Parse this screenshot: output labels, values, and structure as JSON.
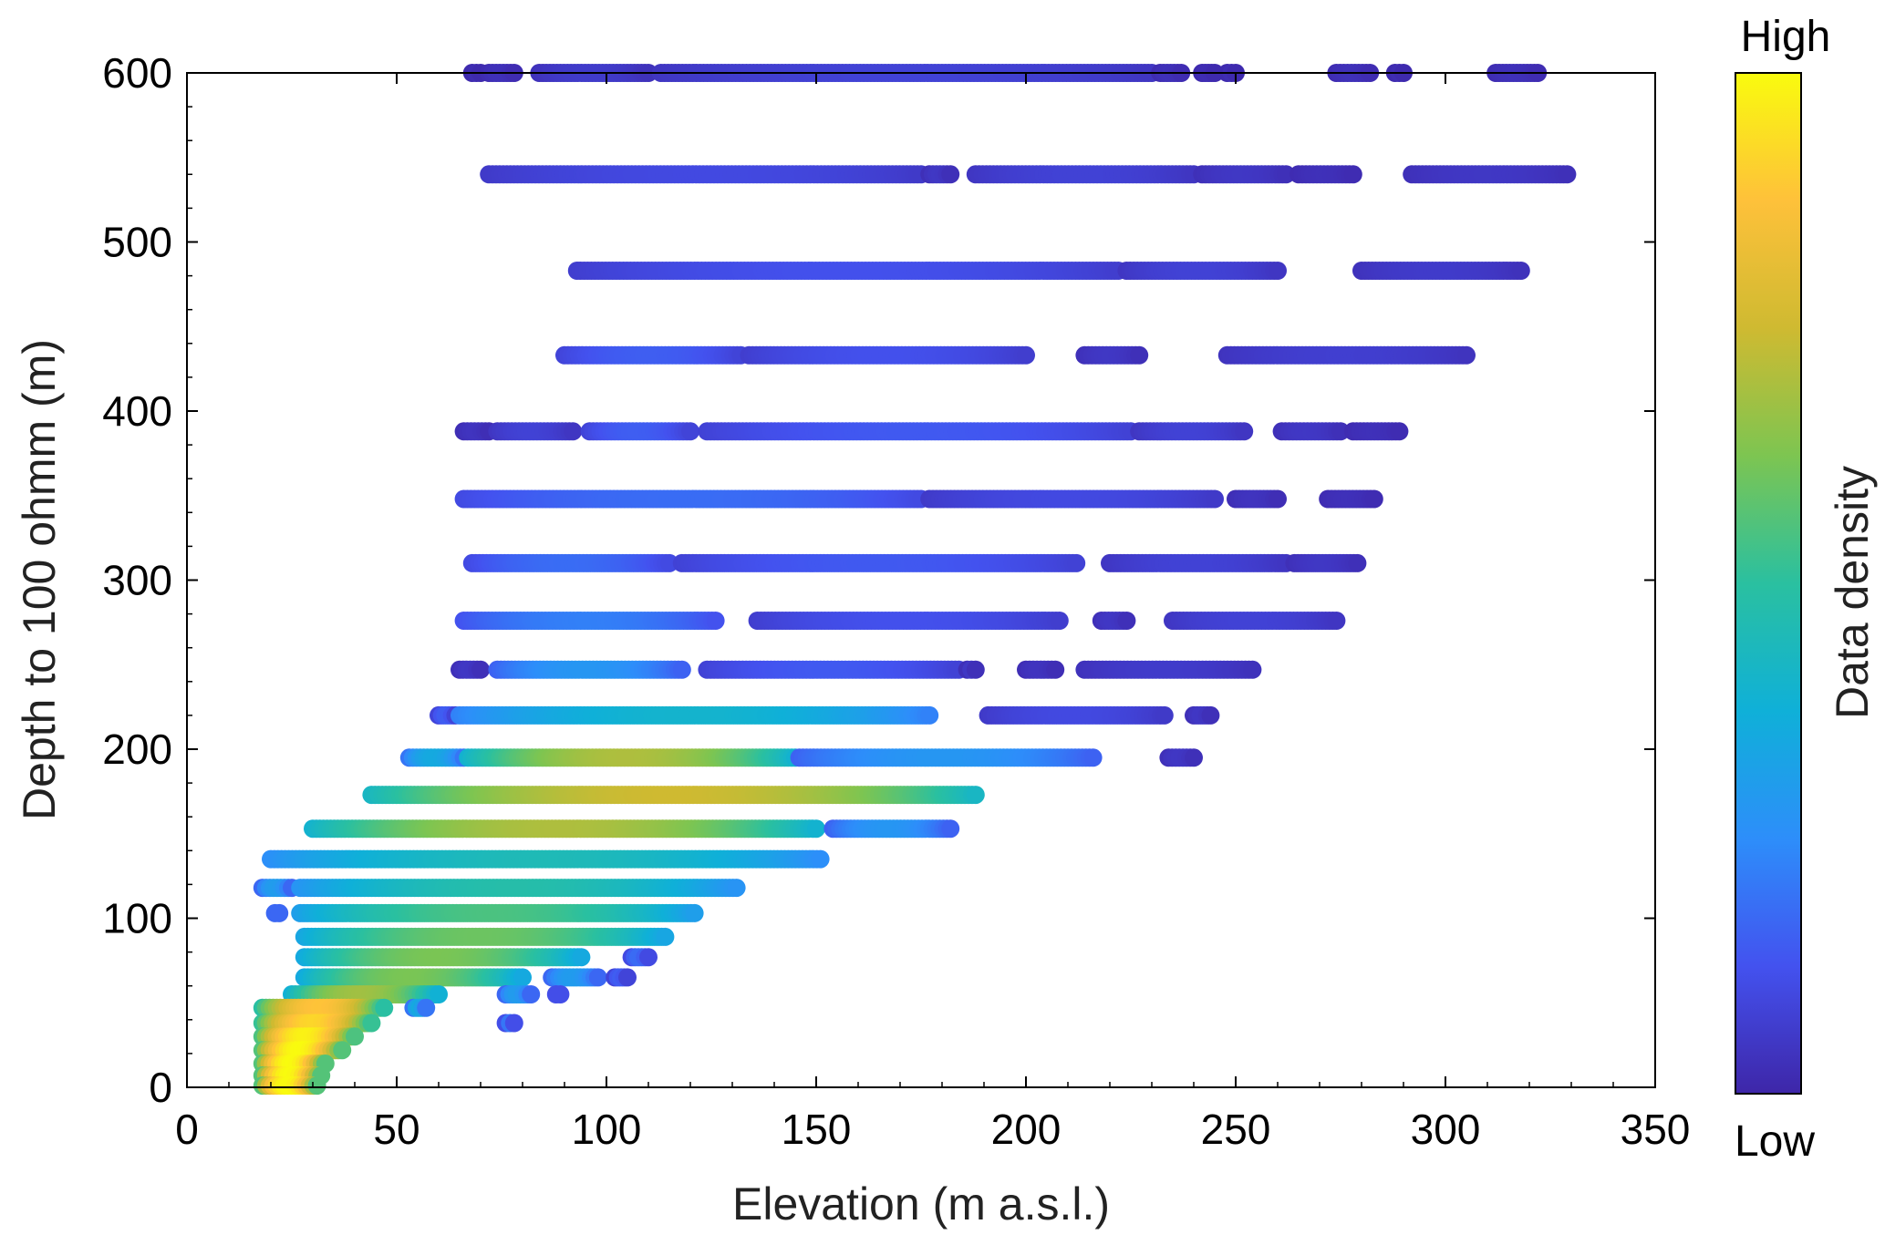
{
  "chart_data": {
    "type": "scatter",
    "xlabel": "Elevation (m a.s.l.)",
    "ylabel": "Depth to 100 ohmm (m)",
    "xlim": [
      0,
      350
    ],
    "ylim": [
      0,
      600
    ],
    "xticks": [
      0,
      50,
      100,
      150,
      200,
      250,
      300,
      350
    ],
    "yticks": [
      0,
      100,
      200,
      300,
      400,
      500,
      600
    ],
    "grid": false,
    "colorbar": {
      "label": "Data density",
      "high_label": "High",
      "low_label": "Low",
      "colormap": [
        "#3e26a8",
        "#4352ef",
        "#2d8efa",
        "#0fb0d8",
        "#2ac0a0",
        "#7dc551",
        "#cfba31",
        "#fec13a",
        "#f9fb0e"
      ]
    },
    "rows": [
      {
        "depth": 600,
        "segments": [
          [
            68,
            70,
            0.02
          ],
          [
            72,
            78,
            0.03
          ],
          [
            84,
            110,
            0.06
          ],
          [
            113,
            230,
            0.08
          ],
          [
            232,
            237,
            0.03
          ],
          [
            242,
            245,
            0.02
          ],
          [
            248,
            250,
            0.02
          ],
          [
            274,
            282,
            0.03
          ],
          [
            288,
            290,
            0.02
          ],
          [
            312,
            322,
            0.03
          ]
        ]
      },
      {
        "depth": 540,
        "segments": [
          [
            72,
            175,
            0.1
          ],
          [
            177,
            182,
            0.05
          ],
          [
            188,
            240,
            0.08
          ],
          [
            242,
            262,
            0.05
          ],
          [
            265,
            278,
            0.03
          ],
          [
            292,
            329,
            0.05
          ]
        ]
      },
      {
        "depth": 483,
        "segments": [
          [
            93,
            222,
            0.12
          ],
          [
            224,
            260,
            0.08
          ],
          [
            280,
            318,
            0.06
          ]
        ]
      },
      {
        "depth": 433,
        "segments": [
          [
            90,
            132,
            0.15
          ],
          [
            134,
            200,
            0.12
          ],
          [
            214,
            227,
            0.05
          ],
          [
            248,
            305,
            0.07
          ]
        ]
      },
      {
        "depth": 388,
        "segments": [
          [
            66,
            72,
            0.04
          ],
          [
            74,
            92,
            0.08
          ],
          [
            96,
            120,
            0.15
          ],
          [
            124,
            225,
            0.14
          ],
          [
            227,
            252,
            0.08
          ],
          [
            261,
            275,
            0.05
          ],
          [
            278,
            289,
            0.03
          ]
        ]
      },
      {
        "depth": 348,
        "segments": [
          [
            66,
            175,
            0.18
          ],
          [
            177,
            245,
            0.1
          ],
          [
            250,
            260,
            0.04
          ],
          [
            272,
            283,
            0.03
          ]
        ]
      },
      {
        "depth": 310,
        "segments": [
          [
            68,
            115,
            0.18
          ],
          [
            118,
            212,
            0.14
          ],
          [
            220,
            262,
            0.08
          ],
          [
            264,
            279,
            0.05
          ]
        ]
      },
      {
        "depth": 276,
        "segments": [
          [
            66,
            126,
            0.22
          ],
          [
            136,
            208,
            0.12
          ],
          [
            218,
            224,
            0.05
          ],
          [
            235,
            274,
            0.08
          ]
        ]
      },
      {
        "depth": 247,
        "segments": [
          [
            65,
            70,
            0.05
          ],
          [
            74,
            118,
            0.28
          ],
          [
            124,
            184,
            0.14
          ],
          [
            186,
            188,
            0.05
          ],
          [
            200,
            207,
            0.04
          ],
          [
            214,
            254,
            0.06
          ]
        ]
      },
      {
        "depth": 220,
        "segments": [
          [
            60,
            64,
            0.15
          ],
          [
            65,
            177,
            0.4
          ],
          [
            191,
            233,
            0.1
          ],
          [
            240,
            244,
            0.05
          ]
        ]
      },
      {
        "depth": 195,
        "segments": [
          [
            53,
            66,
            0.35
          ],
          [
            67,
            145,
            0.7
          ],
          [
            146,
            216,
            0.28
          ],
          [
            234,
            240,
            0.05
          ]
        ]
      },
      {
        "depth": 173,
        "segments": [
          [
            44,
            188,
            0.75
          ]
        ]
      },
      {
        "depth": 153,
        "segments": [
          [
            30,
            150,
            0.7
          ],
          [
            154,
            182,
            0.28
          ]
        ]
      },
      {
        "depth": 135,
        "segments": [
          [
            20,
            151,
            0.45
          ]
        ]
      },
      {
        "depth": 118,
        "segments": [
          [
            18,
            25,
            0.3
          ],
          [
            27,
            131,
            0.48
          ]
        ]
      },
      {
        "depth": 103,
        "segments": [
          [
            21,
            22,
            0.3
          ],
          [
            27,
            121,
            0.55
          ]
        ]
      },
      {
        "depth": 89,
        "segments": [
          [
            28,
            114,
            0.6
          ]
        ]
      },
      {
        "depth": 77,
        "segments": [
          [
            28,
            94,
            0.62
          ],
          [
            106,
            110,
            0.18
          ]
        ]
      },
      {
        "depth": 65,
        "segments": [
          [
            28,
            80,
            0.62
          ],
          [
            87,
            98,
            0.3
          ],
          [
            102,
            105,
            0.15
          ]
        ]
      },
      {
        "depth": 55,
        "segments": [
          [
            25,
            60,
            0.68
          ],
          [
            76,
            82,
            0.3
          ],
          [
            88,
            89,
            0.2
          ]
        ]
      },
      {
        "depth": 47,
        "segments": [
          [
            18,
            47,
            0.88
          ],
          [
            54,
            57,
            0.35
          ]
        ]
      },
      {
        "depth": 38,
        "segments": [
          [
            18,
            44,
            0.92
          ],
          [
            76,
            78,
            0.2
          ]
        ]
      },
      {
        "depth": 30,
        "segments": [
          [
            18,
            40,
            0.98
          ]
        ]
      },
      {
        "depth": 22,
        "segments": [
          [
            18,
            37,
            1.0
          ]
        ]
      },
      {
        "depth": 14,
        "segments": [
          [
            18,
            33,
            1.0
          ]
        ]
      },
      {
        "depth": 7,
        "segments": [
          [
            18,
            32,
            1.0
          ]
        ]
      },
      {
        "depth": 1,
        "segments": [
          [
            18,
            31,
            1.0
          ]
        ]
      }
    ]
  }
}
